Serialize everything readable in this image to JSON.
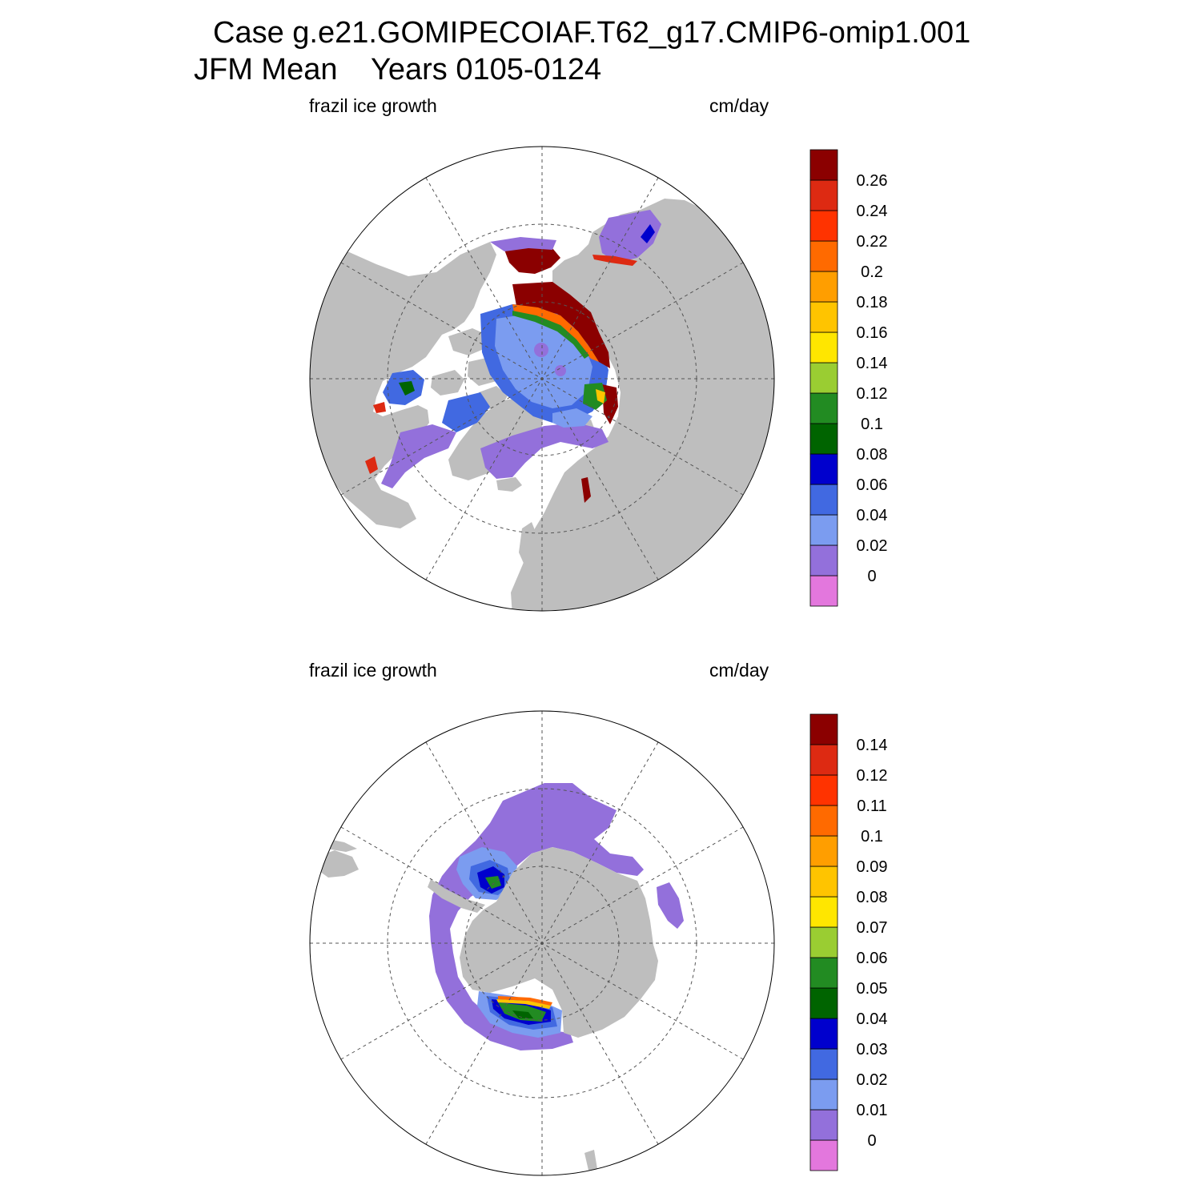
{
  "title": {
    "line1": "Case g.e21.GOMIPECOIAF.T62_g17.CMIP6-omip1.001",
    "line2": "JFM Mean    Years 0105-0124"
  },
  "panels": [
    {
      "id": "north",
      "hemisphere": "north",
      "left_label": "frazil ice growth",
      "right_label": "cm/day",
      "colorbar": {
        "levels": [
          "0",
          "0.02",
          "0.04",
          "0.06",
          "0.08",
          "0.1",
          "0.12",
          "0.14",
          "0.16",
          "0.18",
          "0.2",
          "0.22",
          "0.24",
          "0.26"
        ],
        "colors": [
          "#e377dd",
          "#9370db",
          "#7b9cf0",
          "#4169e1",
          "#0000cd",
          "#006400",
          "#228b22",
          "#9acd32",
          "#ffe600",
          "#ffc400",
          "#ff9e00",
          "#ff6a00",
          "#ff3300",
          "#dd2a12",
          "#8b0000"
        ]
      }
    },
    {
      "id": "south",
      "hemisphere": "south",
      "left_label": "frazil ice growth",
      "right_label": "cm/day",
      "colorbar": {
        "levels": [
          "0",
          "0.01",
          "0.02",
          "0.03",
          "0.04",
          "0.05",
          "0.06",
          "0.07",
          "0.08",
          "0.09",
          "0.1",
          "0.11",
          "0.12",
          "0.14"
        ],
        "colors": [
          "#e377dd",
          "#9370db",
          "#7b9cf0",
          "#4169e1",
          "#0000cd",
          "#006400",
          "#228b22",
          "#9acd32",
          "#ffe600",
          "#ffc400",
          "#ff9e00",
          "#ff6a00",
          "#ff3300",
          "#dd2a12",
          "#8b0000"
        ]
      }
    }
  ],
  "colors": {
    "land": "#bebebe",
    "ocean": "#ffffff",
    "grid": "#555555"
  }
}
